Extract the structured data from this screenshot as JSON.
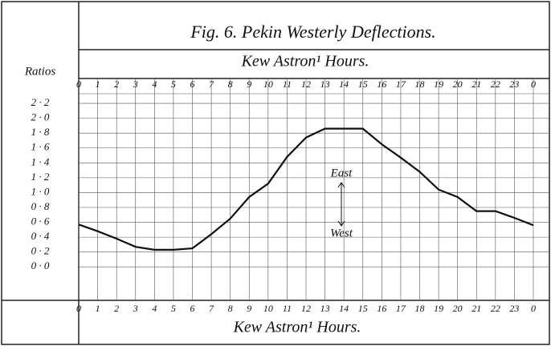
{
  "chart_data": {
    "type": "line",
    "title": "Fig. 6. Pekin Westerly Deflections.",
    "x_label_top": "Kew Astron¹ Hours.",
    "x_label_bottom": "Kew Astron¹ Hours.",
    "y_label": "Ratios",
    "categories": [
      "0",
      "1",
      "2",
      "3",
      "4",
      "5",
      "6",
      "7",
      "8",
      "9",
      "10",
      "11",
      "12",
      "13",
      "14",
      "15",
      "16",
      "17",
      "18",
      "19",
      "20",
      "21",
      "22",
      "23",
      "0"
    ],
    "series": [
      {
        "name": "Westerly Deflections",
        "color": "#111111",
        "values": [
          0.57,
          0.48,
          0.38,
          0.27,
          0.23,
          0.23,
          0.25,
          0.44,
          0.65,
          0.94,
          1.12,
          1.48,
          1.74,
          1.86,
          1.86,
          1.86,
          1.65,
          1.47,
          1.28,
          1.04,
          0.94,
          0.75,
          0.75,
          0.66,
          0.56
        ]
      }
    ],
    "ylim": [
      -0.45,
      2.33
    ],
    "yticks": [
      {
        "value": 2.2,
        "label": "2 · 2"
      },
      {
        "value": 2.0,
        "label": "2 · 0"
      },
      {
        "value": 1.8,
        "label": "1 · 8"
      },
      {
        "value": 1.6,
        "label": "1 · 6"
      },
      {
        "value": 1.4,
        "label": "1 · 4"
      },
      {
        "value": 1.2,
        "label": "1 · 2"
      },
      {
        "value": 1.0,
        "label": "1 · 0"
      },
      {
        "value": 0.8,
        "label": "0 · 8"
      },
      {
        "value": 0.6,
        "label": "0 · 6"
      },
      {
        "value": 0.4,
        "label": "0 · 4"
      },
      {
        "value": 0.2,
        "label": "0 · 2"
      },
      {
        "value": 0,
        "label": "0 · 0"
      }
    ],
    "grid": true,
    "annotations": [
      {
        "text": "East"
      },
      {
        "text": "West"
      }
    ]
  }
}
